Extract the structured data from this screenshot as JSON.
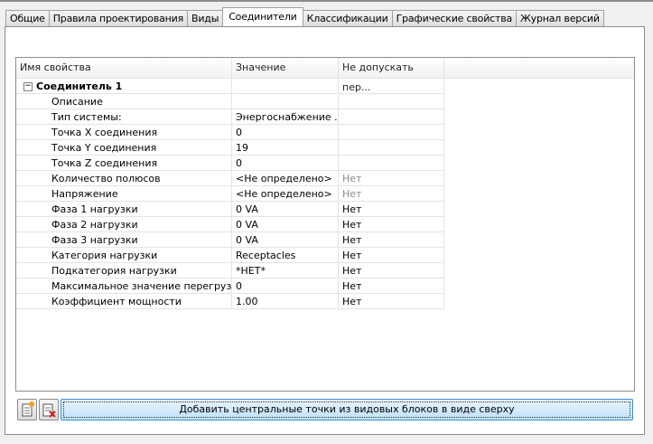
{
  "tabs": [
    "Общие",
    "Правила проектирования",
    "Виды",
    "Соединители",
    "Классификации",
    "Графические свойства",
    "Журнал версий"
  ],
  "active_tab": 3,
  "grid": {
    "headers": [
      "Имя свойства",
      "Значение",
      "Не допускать пер..."
    ],
    "group": "Соединитель 1",
    "rows": [
      {
        "name": "Описание",
        "value": "",
        "lock": ""
      },
      {
        "name": "Тип системы:",
        "value": "Энергоснабжение ...",
        "lock": ""
      },
      {
        "name": "Точка X соединения",
        "value": "0",
        "lock": ""
      },
      {
        "name": "Точка Y соединения",
        "value": "19",
        "lock": ""
      },
      {
        "name": "Точка Z соединения",
        "value": "0",
        "lock": ""
      },
      {
        "name": "Количество полюсов",
        "value": "<Не определено>",
        "lock": "Нет",
        "gray": true
      },
      {
        "name": "Напряжение",
        "value": "<Не определено>",
        "lock": "Нет",
        "gray": true
      },
      {
        "name": "Фаза 1 нагрузки",
        "value": "0 VA",
        "lock": "Нет"
      },
      {
        "name": "Фаза 2 нагрузки",
        "value": "0 VA",
        "lock": "Нет"
      },
      {
        "name": "Фаза 3 нагрузки",
        "value": "0 VA",
        "lock": "Нет"
      },
      {
        "name": "Категория нагрузки",
        "value": "Receptacles",
        "lock": "Нет"
      },
      {
        "name": "Подкатегория нагрузки",
        "value": "*НЕТ*",
        "lock": "Нет"
      },
      {
        "name": "Максимальное значение перегрузки...",
        "value": "0",
        "lock": "Нет"
      },
      {
        "name": "Коэффициент мощности",
        "value": "1.00",
        "lock": "Нет"
      }
    ]
  },
  "buttons": {
    "add_icon": "add-connector-icon",
    "remove_icon": "remove-connector-icon",
    "add_centers": "Добавить центральные точки из видовых блоков в виде сверху"
  }
}
